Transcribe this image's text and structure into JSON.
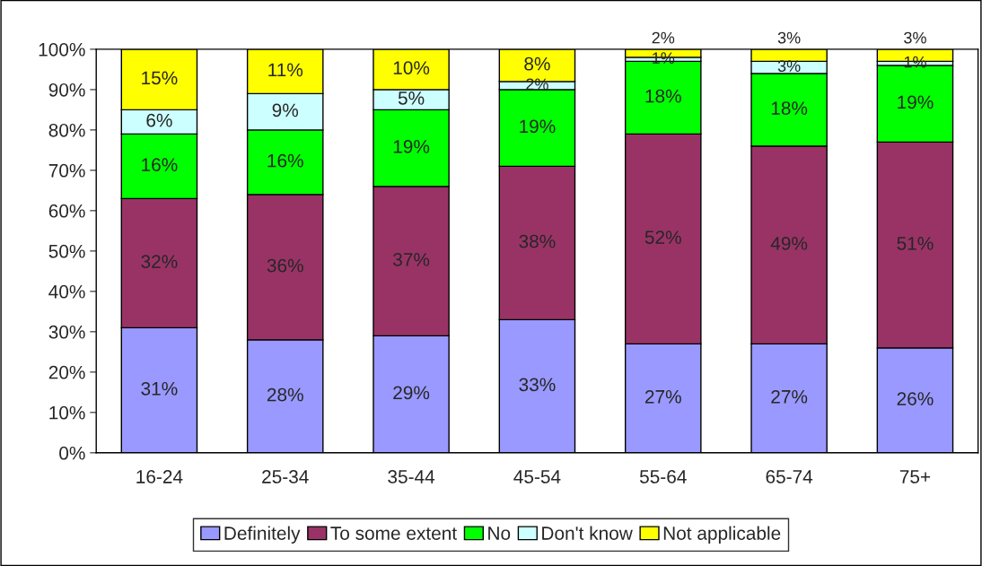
{
  "chart_data": {
    "type": "bar",
    "stacked": true,
    "categories": [
      "16-24",
      "25-34",
      "35-44",
      "45-54",
      "55-64",
      "65-74",
      "75+"
    ],
    "series": [
      {
        "name": "Definitely",
        "color": "#9999ff",
        "values": [
          31,
          28,
          29,
          33,
          27,
          27,
          26
        ],
        "value_labels": [
          "31%",
          "28%",
          "29%",
          "33%",
          "27%",
          "27%",
          "26%"
        ]
      },
      {
        "name": "To some extent",
        "color": "#993366",
        "values": [
          32,
          36,
          37,
          38,
          52,
          49,
          51
        ],
        "value_labels": [
          "32%",
          "36%",
          "37%",
          "38%",
          "52%",
          "49%",
          "51%"
        ]
      },
      {
        "name": "No",
        "color": "#00ff00",
        "values": [
          16,
          16,
          19,
          19,
          18,
          18,
          19
        ],
        "value_labels": [
          "16%",
          "16%",
          "19%",
          "19%",
          "18%",
          "18%",
          "19%"
        ]
      },
      {
        "name": "Don't know",
        "color": "#ccffff",
        "values": [
          6,
          9,
          5,
          2,
          1,
          3,
          1
        ],
        "value_labels": [
          "6%",
          "9%",
          "5%",
          "2%",
          "1%",
          "3%",
          "1%"
        ]
      },
      {
        "name": "Not applicable",
        "color": "#ffff00",
        "values": [
          15,
          11,
          10,
          8,
          2,
          3,
          3
        ],
        "value_labels": [
          "15%",
          "11%",
          "10%",
          "8%",
          "2%",
          "3%",
          "3%"
        ]
      }
    ],
    "ylim": [
      0,
      100
    ],
    "yticks": [
      {
        "value": 0,
        "label": "0%"
      },
      {
        "value": 10,
        "label": "10%"
      },
      {
        "value": 20,
        "label": "20%"
      },
      {
        "value": 30,
        "label": "30%"
      },
      {
        "value": 40,
        "label": "40%"
      },
      {
        "value": 50,
        "label": "50%"
      },
      {
        "value": 60,
        "label": "60%"
      },
      {
        "value": 70,
        "label": "70%"
      },
      {
        "value": 80,
        "label": "80%"
      },
      {
        "value": 90,
        "label": "90%"
      },
      {
        "value": 100,
        "label": "100%"
      }
    ],
    "grid": false,
    "legend": "bottom"
  }
}
